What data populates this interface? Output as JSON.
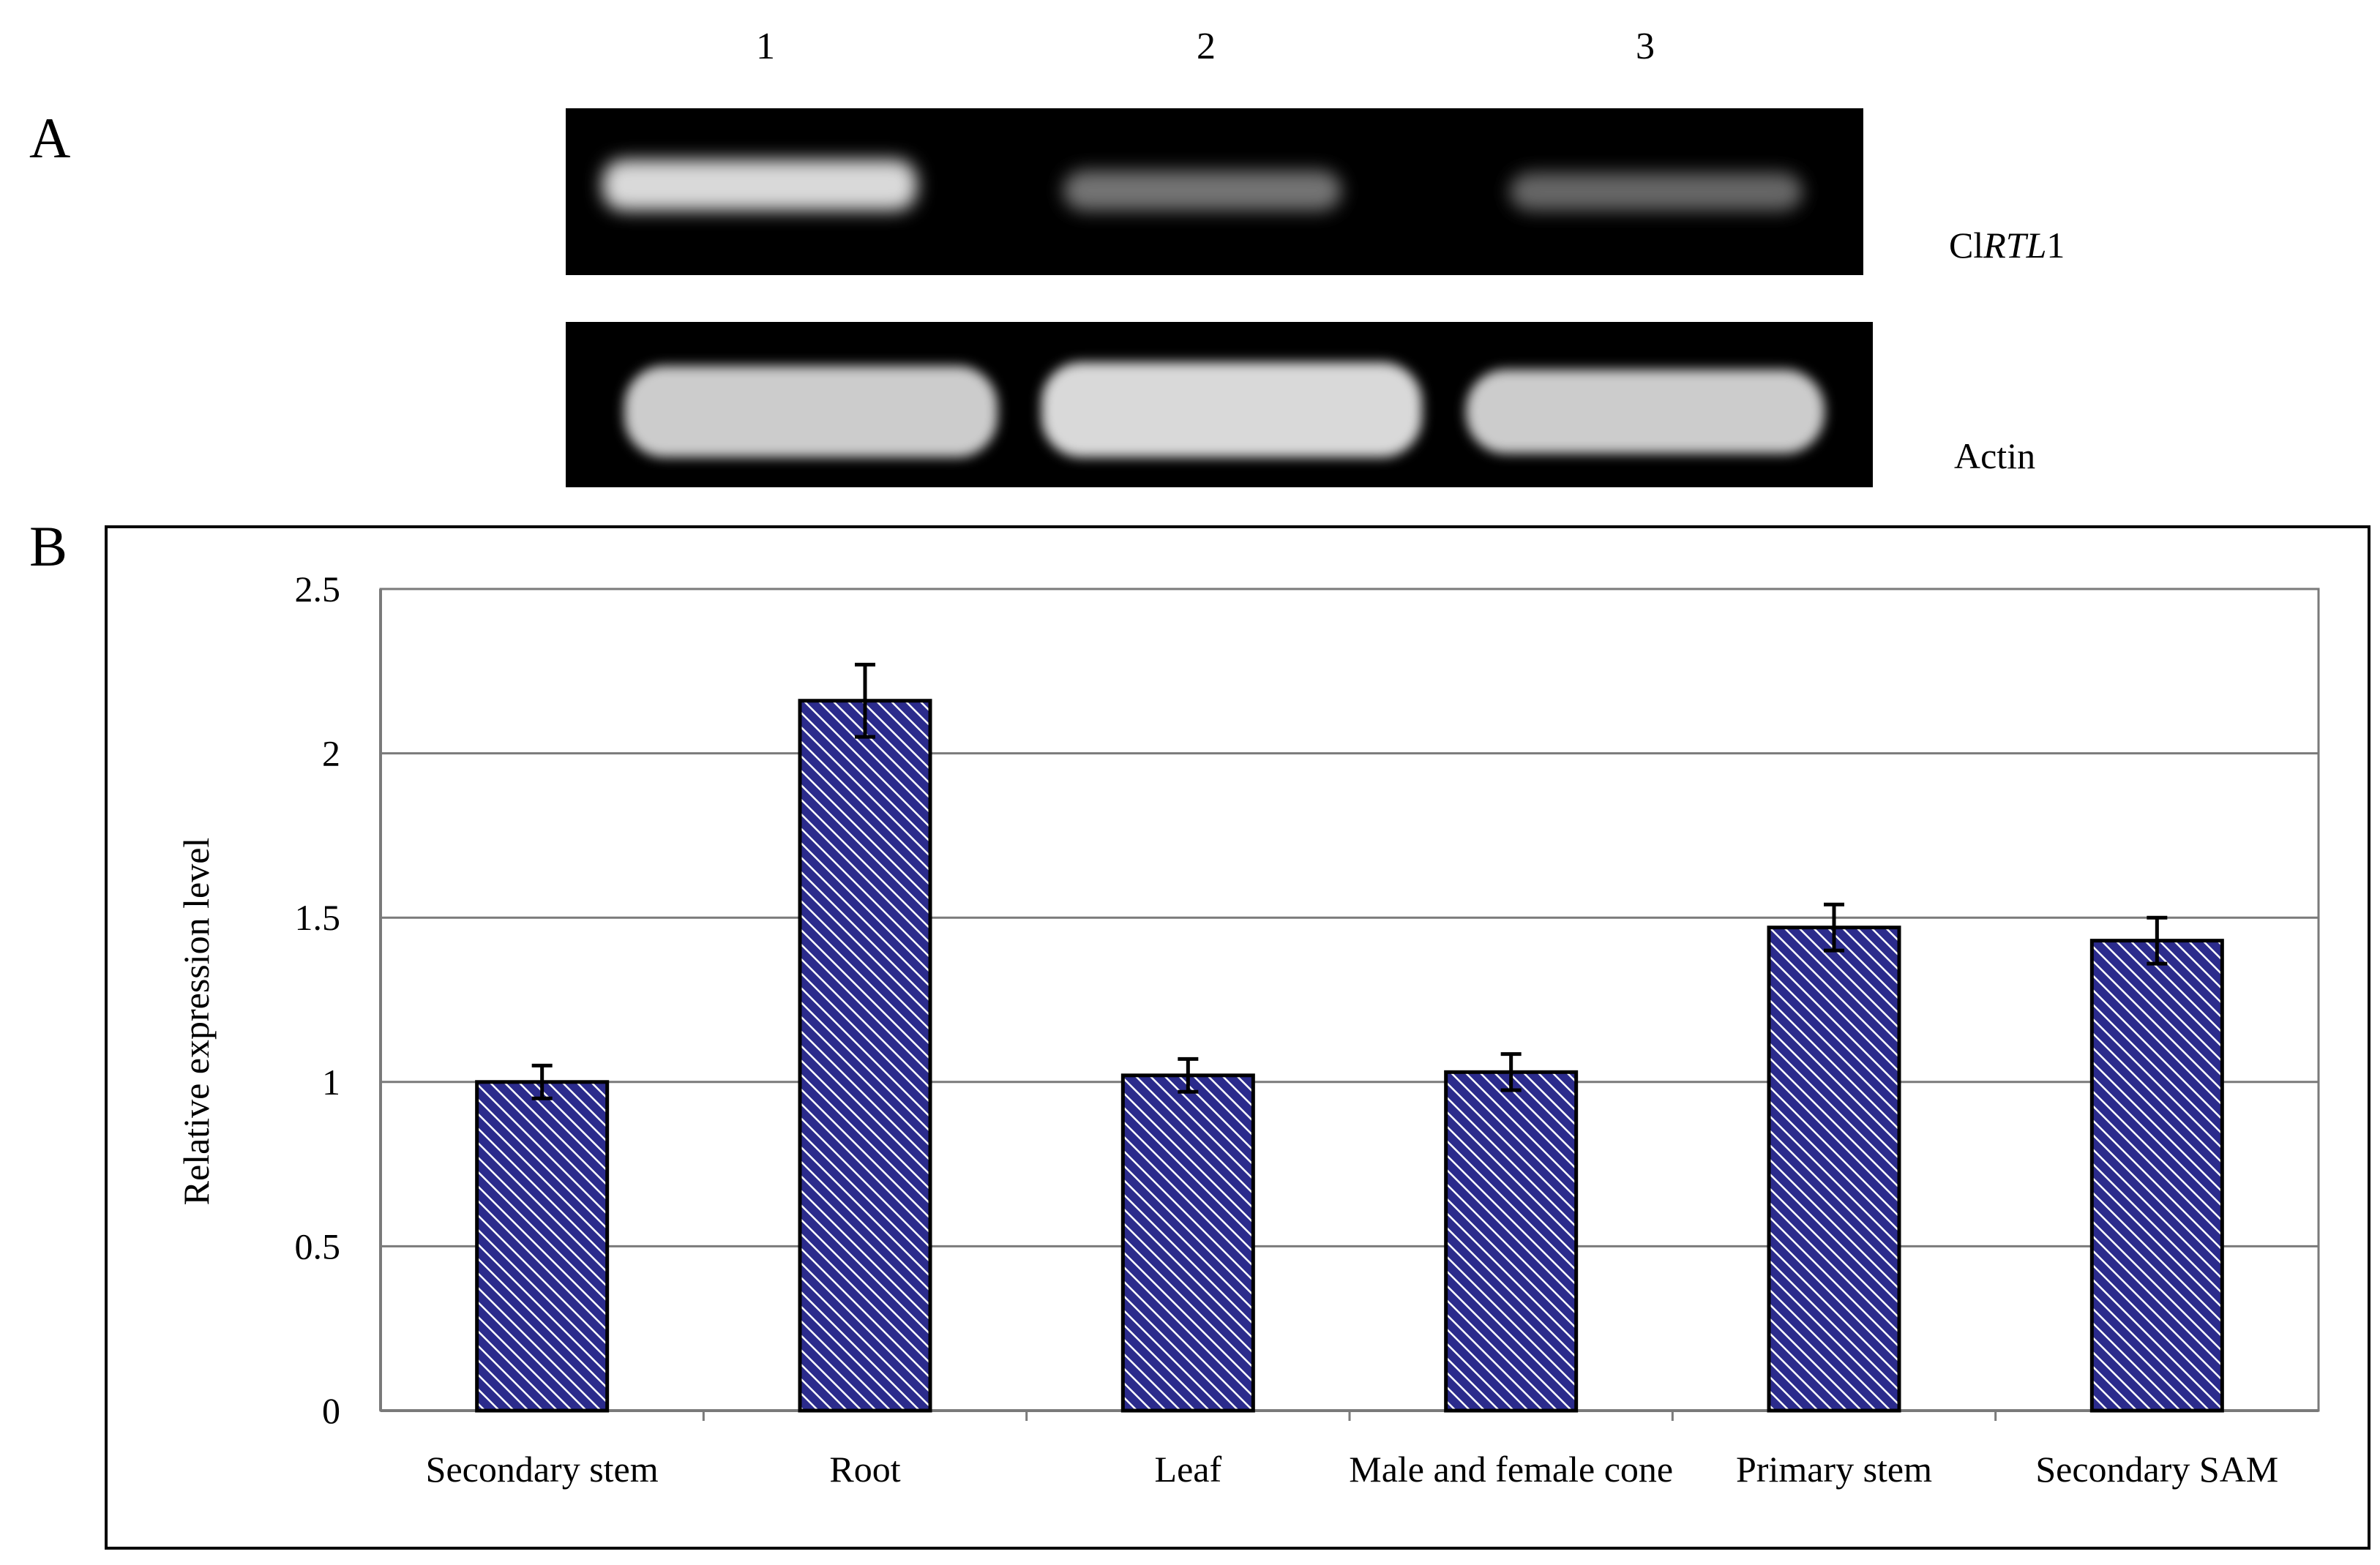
{
  "panel_a": {
    "letter": "A",
    "lane_labels": [
      "1",
      "2",
      "3"
    ],
    "gene_label_prefix": "Cl",
    "gene_label_italic": "RTL",
    "gene_label_suffix": "1",
    "control_label": "Actin",
    "gene_band_intensities": [
      0.85,
      0.45,
      0.4
    ],
    "control_band_intensities": [
      0.8,
      0.85,
      0.8
    ]
  },
  "panel_b": {
    "letter": "B"
  },
  "chart_data": {
    "type": "bar",
    "title": "",
    "xlabel": "",
    "ylabel": "Relative expression level",
    "categories": [
      "Secondary stem",
      "Root",
      "Leaf",
      "Male and female cone",
      "Primary stem",
      "Secondary SAM"
    ],
    "values": [
      1.0,
      2.16,
      1.02,
      1.03,
      1.47,
      1.43
    ],
    "errors": [
      0.05,
      0.11,
      0.05,
      0.055,
      0.07,
      0.07
    ],
    "ylim": [
      0,
      2.5
    ],
    "yticks": [
      "0",
      "0.5",
      "1",
      "1.5",
      "2",
      "2.5"
    ],
    "ytick_values": [
      0,
      0.5,
      1,
      1.5,
      2,
      2.5
    ],
    "grid": true,
    "legend": "none",
    "bar_color": "#2b2b8c",
    "bar_hatch_color": "#ffffff"
  }
}
